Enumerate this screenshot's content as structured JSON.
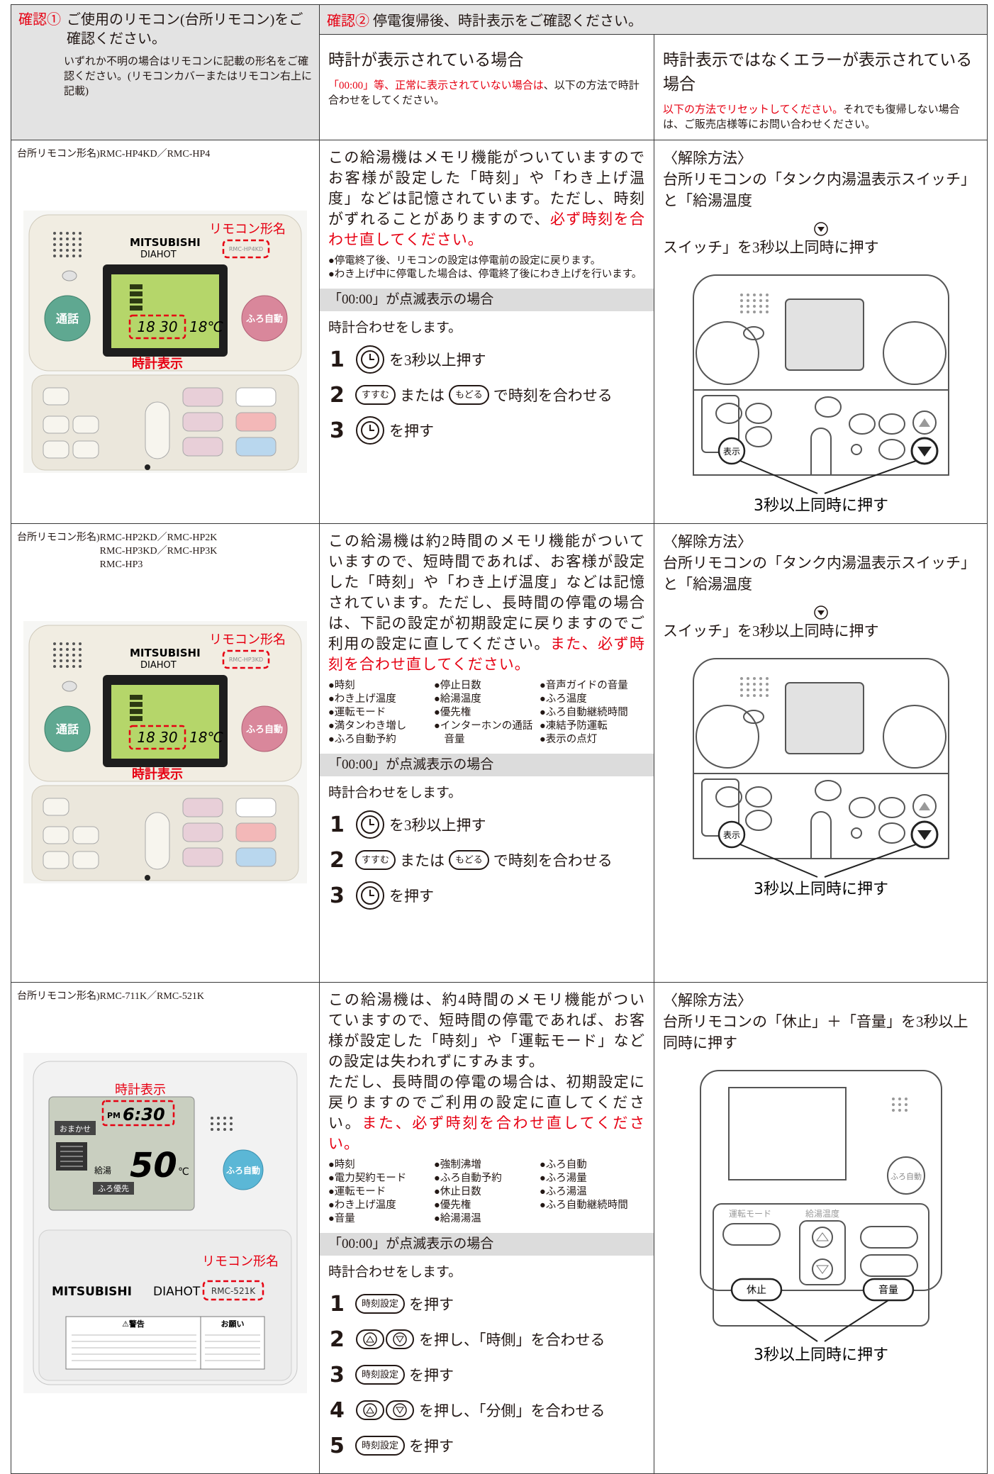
{
  "header": {
    "check1_label": "確認①",
    "check1_title": "ご使用のリモコン(台所リモコン)をご確認ください。",
    "check1_note": "いずれか不明の場合はリモコンに記載の形名をご確認ください。(リモコンカバーまたはリモコン右上に記載)",
    "check2_label": "確認②",
    "check2_title": "停電復帰後、時計表示をご確認ください。",
    "clock_title": "時計が表示されている場合",
    "clock_note_red": "「00:00」等、正常に表示されていない場合は",
    "clock_note": "、以下の方法で時計合わせをしてください。",
    "error_title": "時計表示ではなくエラーが表示されている場合",
    "error_note_red": "以下の方法でリセットしてください。",
    "error_note": "それでも復帰しない場合は、ご販売店様等にお問い合わせください。"
  },
  "rows": [
    {
      "model_label": "台所リモコン形名)",
      "models": [
        "RMC-HP4KD／RMC-HP4"
      ],
      "photo": {
        "brand": "MITSUBISHI",
        "sub": "DIAHOT",
        "model_tag": "RMC-HP4KD",
        "model_callout": "リモコン形名",
        "clock_callout": "時計表示",
        "lcd_time": "18 30",
        "lcd_temp": "18℃",
        "talk": "通話",
        "bath": "ふろ自動"
      },
      "memory": [
        "この給湯機はメモリ機能がついていますのでお客様が設定した「時刻」や「わき上げ温度」などは記憶されています。ただし、時刻がずれることがありますので、"
      ],
      "memory_red": "必ず時刻を合わせ直してください。",
      "bullet_columns": [
        [
          "●停電終了後、リモコンの設定は停電前の設定に戻ります。",
          "●わき上げ中に停電した場合は、停電終了後にわき上げを行います。"
        ]
      ],
      "blink": "「00:00」が点滅表示の場合",
      "intro": "時計合わせをします。",
      "steps": [
        {
          "num": 1,
          "texts": [
            "を3秒以上押す"
          ]
        },
        {
          "num": 2,
          "buttons": [
            "すすむ",
            "もどる"
          ],
          "texts": [
            "または",
            "で時刻を合わせる"
          ]
        },
        {
          "num": 3,
          "texts": [
            "を押す"
          ]
        }
      ],
      "reset_title": "〈解除方法〉",
      "reset_text": [
        "台所リモコンの「タンク内湯温表示スイッチ」と「給湯温度",
        "スイッチ」を3秒以上同時に押す"
      ],
      "diagram": {
        "display_btn": "表示",
        "press": "3秒以上同時に押す"
      }
    },
    {
      "model_label": "台所リモコン形名)",
      "models": [
        "RMC-HP2KD／RMC-HP2K",
        "RMC-HP3KD／RMC-HP3K",
        "RMC-HP3"
      ],
      "photo": {
        "brand": "MITSUBISHI",
        "sub": "DIAHOT",
        "model_tag": "RMC-HP3KD",
        "model_callout": "リモコン形名",
        "clock_callout": "時計表示",
        "lcd_time": "18 30",
        "lcd_temp": "18℃",
        "talk": "通話",
        "bath": "ふろ自動"
      },
      "memory": [
        "この給湯機は約2時間のメモリ機能がついていますので、短時間であれば、お客様が設定した「時刻」や「わき上げ温度」などは記憶されています。ただし、長時間の停電の場合は、下記の設定が初期設定に戻りますのでご利用の設定に直してください。"
      ],
      "memory_red": "また、必ず時刻を合わせ直してください。",
      "bullet_columns": [
        [
          "●時刻",
          "●わき上げ温度",
          "●運転モード",
          "●満タンわき増し",
          "●ふろ自動予約"
        ],
        [
          "●停止日数",
          "●給湯温度",
          "●優先権",
          "●インターホンの通話音量"
        ],
        [
          "●音声ガイドの音量",
          "●ふろ温度",
          "●ふろ自動継続時間",
          "●凍結予防運転",
          "●表示の点灯"
        ]
      ],
      "blink": "「00:00」が点滅表示の場合",
      "intro": "時計合わせをします。",
      "steps": [
        {
          "num": 1,
          "texts": [
            "を3秒以上押す"
          ]
        },
        {
          "num": 2,
          "buttons": [
            "すすむ",
            "もどる"
          ],
          "texts": [
            "または",
            "で時刻を合わせる"
          ]
        },
        {
          "num": 3,
          "texts": [
            "を押す"
          ]
        }
      ],
      "reset_title": "〈解除方法〉",
      "reset_text": [
        "台所リモコンの「タンク内湯温表示スイッチ」と「給湯温度",
        "スイッチ」を3秒以上同時に押す"
      ],
      "diagram": {
        "display_btn": "表示",
        "press": "3秒以上同時に押す"
      }
    },
    {
      "model_label": "台所リモコン形名)",
      "models": [
        "RMC-711K／RMC-521K"
      ],
      "photo": {
        "clock_callout": "時計表示",
        "pm": "PM",
        "lcd_time": "6:30",
        "omakase": "おまかせ",
        "lcd_temp": "50",
        "unit": "℃",
        "supply": "給湯",
        "bath_priority": "ふろ優先",
        "bath": "ふろ自動",
        "brand": "MITSUBISHI",
        "sub": "DIAHOT",
        "model_callout": "リモコン形名",
        "model_tag": "RMC-521K",
        "warning": "⚠警告",
        "request": "お願い"
      },
      "memory": [
        "この給湯機は、約4時間のメモリ機能がついていますので、短時間の停電であれば、お客様が設定した「時刻」や「運転モード」などの設定は失われずにすみます。",
        "ただし、長時間の停電の場合は、初期設定に戻りますのでご利用の設定に直してください。"
      ],
      "memory_red": "また、必ず時刻を合わせ直してください。",
      "bullet_columns": [
        [
          "●時刻",
          "●電力契約モード",
          "●運転モード",
          "●わき上げ温度",
          "●音量"
        ],
        [
          "●強制沸増",
          "●ふろ自動予約",
          "●休止日数",
          "●優先権",
          "●給湯湯温"
        ],
        [
          "●ふろ自動",
          "●ふろ湯量",
          "●ふろ湯温",
          "●ふろ自動継続時間"
        ]
      ],
      "blink": "「00:00」が点滅表示の場合",
      "intro": "時計合わせをします。",
      "steps": [
        {
          "num": 1,
          "buttons": [
            "時刻設定"
          ],
          "texts": [
            "を押す"
          ]
        },
        {
          "num": 2,
          "texts": [
            "を押し、「時側」を合わせる"
          ]
        },
        {
          "num": 3,
          "buttons": [
            "時刻設定"
          ],
          "texts": [
            "を押す"
          ]
        },
        {
          "num": 4,
          "texts": [
            "を押し、「分側」を合わせる"
          ]
        },
        {
          "num": 5,
          "buttons": [
            "時刻設定"
          ],
          "texts": [
            "を押す"
          ]
        }
      ],
      "reset_title": "〈解除方法〉",
      "reset_text": [
        "台所リモコンの「休止」＋「音量」を3秒以上同時に押す"
      ],
      "diagram": {
        "mode": "運転モード",
        "temp": "給湯温度",
        "bath": "ふろ自動",
        "pause": "休止",
        "volume": "音量",
        "press": "3秒以上同時に押す"
      }
    }
  ]
}
